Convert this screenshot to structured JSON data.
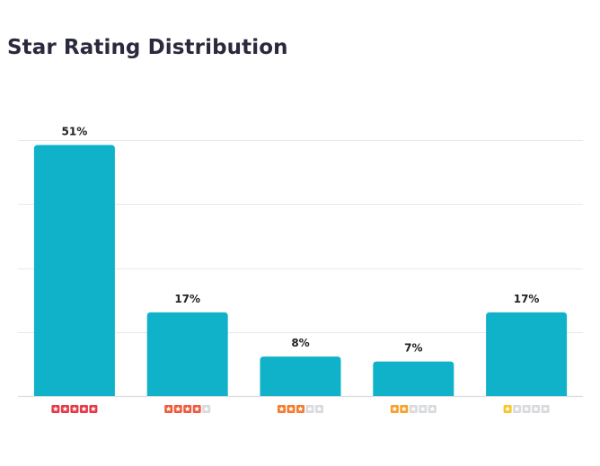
{
  "chart_data": {
    "type": "bar",
    "title": "Star Rating Distribution",
    "categories": [
      "5 stars",
      "4 stars",
      "3 stars",
      "2 stars",
      "1 star"
    ],
    "values": [
      51,
      17,
      8,
      7,
      17
    ],
    "data_labels": [
      "51%",
      "17%",
      "8%",
      "7%",
      "17%"
    ],
    "category_star_counts": [
      5,
      4,
      3,
      2,
      1
    ],
    "category_star_colors": [
      "#e53946",
      "#ee5a3a",
      "#f47b2e",
      "#f7a02a",
      "#f9c424"
    ],
    "empty_star_color": "#d8dadd",
    "bar_color": "#0fb2c9",
    "ylim": [
      0,
      52
    ],
    "gridlines": [
      13,
      26,
      39,
      52
    ],
    "grid": true,
    "legend": "none",
    "xlabel": "",
    "ylabel": ""
  }
}
